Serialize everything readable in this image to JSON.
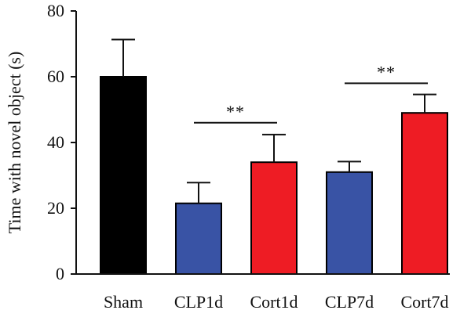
{
  "chart_data": {
    "type": "bar",
    "title": "",
    "xlabel": "",
    "ylabel": "Time with novel object (s)",
    "ylim": [
      0,
      80
    ],
    "yticks": [
      0,
      20,
      40,
      60,
      80
    ],
    "grid": false,
    "categories": [
      "Sham",
      "CLP1d",
      "Cort1d",
      "CLP7d",
      "Cort7d"
    ],
    "values": [
      60,
      21.5,
      34,
      31,
      49
    ],
    "errors": [
      11.3,
      6.3,
      8.4,
      3.2,
      5.6
    ],
    "colors": [
      "#000000",
      "#3953a5",
      "#ee1c24",
      "#3953a5",
      "#ee1c24"
    ],
    "significance": [
      {
        "from": "CLP1d",
        "to": "Cort1d",
        "y": 46,
        "label": "**"
      },
      {
        "from": "CLP7d",
        "to": "Cort7d",
        "y": 58,
        "label": "**"
      }
    ]
  }
}
